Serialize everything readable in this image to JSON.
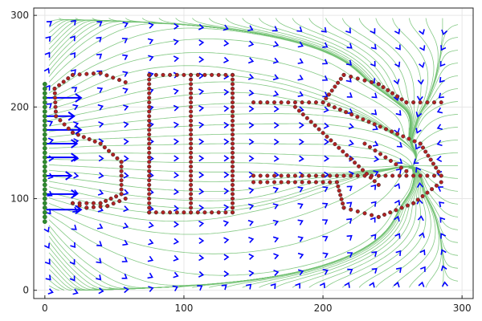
{
  "chart_data": {
    "type": "scatter",
    "title": "",
    "xlabel": "",
    "ylabel": "",
    "xlim": [
      -8,
      308
    ],
    "ylim": [
      -9,
      308
    ],
    "xticks": [
      0,
      100,
      200,
      300
    ],
    "yticks": [
      0,
      100,
      200,
      300
    ],
    "xtick_labels": [
      "0",
      "100",
      "200",
      "300"
    ],
    "ytick_labels": [
      "0",
      "100",
      "200",
      "300"
    ],
    "grid": true,
    "legend": "none",
    "colors": {
      "streamlines": "#6fbf6f",
      "field_arrows": "#0000ff",
      "obstacle_points": "#b22222",
      "obstacle_edge": "#333333",
      "source_points": "#2e8b2e"
    },
    "series": [
      {
        "kind": "obstacle_outline_S",
        "polylines": [
          [
            [
              58,
              227
            ],
            [
              40,
              237
            ],
            [
              20,
              235
            ],
            [
              7,
              220
            ],
            [
              8,
              190
            ],
            [
              20,
              172
            ],
            [
              40,
              160
            ],
            [
              55,
              140
            ],
            [
              55,
              105
            ],
            [
              40,
              95
            ],
            [
              20,
              95
            ]
          ],
          [
            [
              20,
              95
            ],
            [
              30,
              90
            ],
            [
              45,
              92
            ],
            [
              58,
              100
            ]
          ]
        ]
      },
      {
        "kind": "obstacle_outline_I",
        "polylines": [
          [
            [
              75,
              235
            ],
            [
              135,
              235
            ]
          ],
          [
            [
              105,
              235
            ],
            [
              105,
              85
            ]
          ],
          [
            [
              75,
              85
            ],
            [
              135,
              85
            ]
          ],
          [
            [
              75,
              235
            ],
            [
              75,
              85
            ]
          ],
          [
            [
              135,
              235
            ],
            [
              135,
              85
            ]
          ]
        ]
      },
      {
        "kind": "obstacle_outline_arrow",
        "polylines": [
          [
            [
              150,
              205
            ],
            [
              200,
              205
            ],
            [
              215,
              235
            ],
            [
              240,
              225
            ],
            [
              260,
              205
            ],
            [
              285,
              205
            ]
          ],
          [
            [
              150,
              125
            ],
            [
              285,
              125
            ]
          ],
          [
            [
              180,
              200
            ],
            [
              240,
              115
            ]
          ],
          [
            [
              200,
              205
            ],
            [
              270,
              160
            ],
            [
              285,
              125
            ]
          ],
          [
            [
              150,
              118
            ],
            [
              210,
              118
            ],
            [
              215,
              90
            ],
            [
              240,
              80
            ],
            [
              265,
              95
            ],
            [
              285,
              118
            ]
          ],
          [
            [
              230,
              160
            ],
            [
              260,
              130
            ]
          ]
        ]
      },
      {
        "kind": "source_line",
        "x": [
          0,
          0
        ],
        "y": [
          75,
          225
        ]
      }
    ],
    "field": {
      "x_range": [
        0,
        295
      ],
      "y_range": [
        0,
        295
      ],
      "spacing": 18
    }
  }
}
